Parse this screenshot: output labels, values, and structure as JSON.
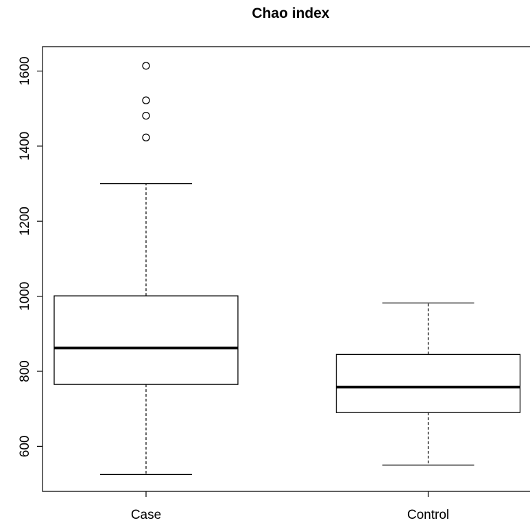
{
  "chart_data": {
    "type": "boxplot",
    "title": "Chao index",
    "xlabel": "",
    "ylabel": "",
    "ylim": [
      480,
      1665
    ],
    "yticks": [
      600,
      800,
      1000,
      1200,
      1400,
      1600
    ],
    "categories": [
      "Case",
      "Control"
    ],
    "boxes": [
      {
        "category": "Case",
        "min": 525,
        "q1": 765,
        "median": 862,
        "q3": 1001,
        "max": 1300,
        "outliers": [
          1423,
          1481,
          1522,
          1614
        ]
      },
      {
        "category": "Control",
        "min": 550,
        "q1": 690,
        "median": 758,
        "q3": 845,
        "max": 982,
        "outliers": []
      }
    ],
    "grid": false,
    "legend": "none"
  }
}
